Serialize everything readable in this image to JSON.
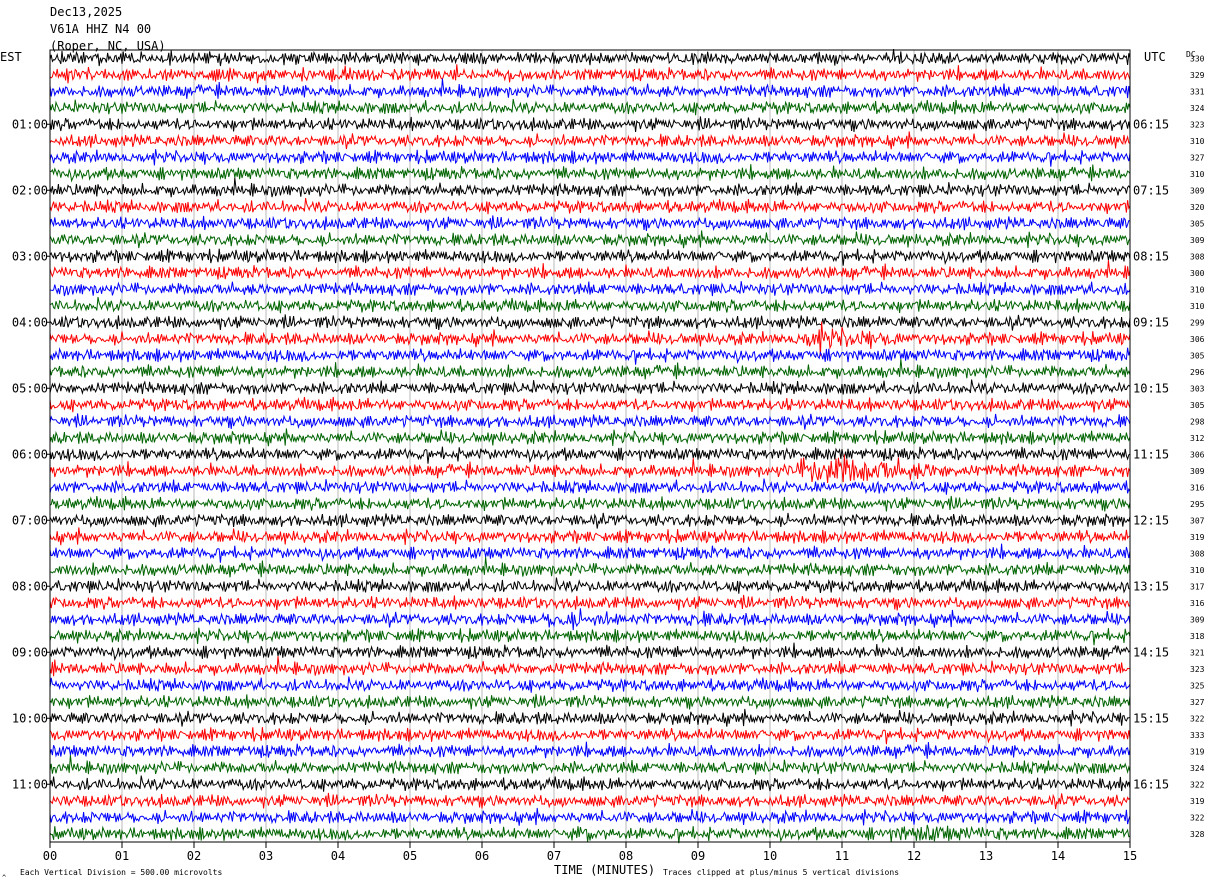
{
  "header": {
    "date": "Dec13,2025",
    "station": "V61A HHZ N4 00",
    "location": "(Roper, NC, USA)"
  },
  "chart_data": {
    "type": "line",
    "title": "",
    "left_axis_title": "EST",
    "right_axis_title": "UTC",
    "dc_header": "DC",
    "xlabel": "TIME (MINUTES)",
    "xlim": [
      0,
      15
    ],
    "x_ticks": [
      "00",
      "01",
      "02",
      "03",
      "04",
      "05",
      "06",
      "07",
      "08",
      "09",
      "10",
      "11",
      "12",
      "13",
      "14",
      "15"
    ],
    "trace_colors": [
      "#000000",
      "#ff0000",
      "#0000ff",
      "#006400"
    ],
    "traces_per_hour": 4,
    "minutes_per_trace": 15,
    "est_hour_labels": [
      "01:00",
      "02:00",
      "03:00",
      "04:00",
      "05:00",
      "06:00",
      "07:00",
      "08:00",
      "09:00",
      "10:00",
      "11:00"
    ],
    "utc_hour_labels": [
      "06:15",
      "07:15",
      "08:15",
      "09:15",
      "10:15",
      "11:15",
      "12:15",
      "13:15",
      "14:15",
      "15:15",
      "16:15"
    ],
    "dc_offsets": [
      "330",
      "329",
      "331",
      "324",
      "323",
      "310",
      "327",
      "310",
      "309",
      "320",
      "305",
      "309",
      "308",
      "300",
      "310",
      "310",
      "299",
      "306",
      "305",
      "296",
      "303",
      "305",
      "298",
      "312",
      "306",
      "309",
      "316",
      "295",
      "307",
      "319",
      "308",
      "310",
      "317",
      "316",
      "309",
      "318",
      "321",
      "323",
      "325",
      "327",
      "322",
      "333",
      "319",
      "324",
      "322",
      "319",
      "322",
      "328"
    ],
    "events": [
      {
        "trace": 17,
        "minute_start": 10.3,
        "minute_end": 11.8,
        "amplitude": 2.2
      },
      {
        "trace": 25,
        "minute_start": 10.2,
        "minute_end": 12.5,
        "amplitude": 3.2
      },
      {
        "trace": 34,
        "minute_start": 6.8,
        "minute_end": 7.9,
        "amplitude": 2.0
      },
      {
        "trace": 34,
        "minute_start": 8.8,
        "minute_end": 9.3,
        "amplitude": 1.5
      },
      {
        "trace": 47,
        "minute_start": 11.5,
        "minute_end": 13.5,
        "amplitude": 1.6
      },
      {
        "trace": 47,
        "minute_start": 7.2,
        "minute_end": 7.9,
        "amplitude": 1.4
      }
    ]
  },
  "footer": {
    "scale_note": "Each Vertical Division =  500.00 microvolts",
    "clip_note": "Traces clipped at plus/minus 5 vertical divisions",
    "corner_mark": "^"
  }
}
